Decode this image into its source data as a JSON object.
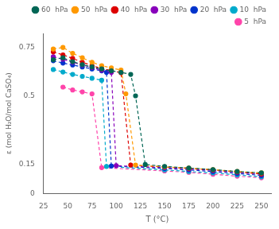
{
  "chart_data": {
    "type": "line",
    "xlabel": "T (°C)",
    "ylabel": "ε (mol H₂O/mol CaSO₄)",
    "xlim": [
      25,
      260
    ],
    "ylim": [
      0,
      0.82
    ],
    "xticks": [
      25,
      50,
      75,
      100,
      125,
      150,
      175,
      200,
      225,
      250
    ],
    "yticks": [
      0,
      0.15,
      0.5,
      0.75
    ],
    "grid": false,
    "legend": "upper right",
    "marker": "o",
    "line_style": "dashed",
    "series": [
      {
        "name": "60  hPa",
        "color": "#006655",
        "x": [
          35,
          45,
          55,
          65,
          75,
          85,
          95,
          105,
          115,
          120,
          130,
          150,
          175,
          200,
          225,
          250
        ],
        "values": [
          0.685,
          0.695,
          0.675,
          0.66,
          0.648,
          0.638,
          0.628,
          0.62,
          0.61,
          0.5,
          0.148,
          0.138,
          0.13,
          0.122,
          0.112,
          0.105
        ]
      },
      {
        "name": "50  hPa",
        "color": "#ff9900",
        "x": [
          35,
          45,
          55,
          65,
          75,
          85,
          95,
          105,
          110,
          120,
          150,
          175,
          200,
          225,
          250
        ],
        "values": [
          0.74,
          0.748,
          0.718,
          0.695,
          0.672,
          0.655,
          0.643,
          0.632,
          0.51,
          0.145,
          0.136,
          0.13,
          0.122,
          0.112,
          0.105
        ]
      },
      {
        "name": "40  hPa",
        "color": "#dd0000",
        "x": [
          35,
          45,
          55,
          65,
          75,
          85,
          95,
          105,
          115,
          150,
          175,
          200,
          225,
          250
        ],
        "values": [
          0.725,
          0.71,
          0.692,
          0.672,
          0.655,
          0.64,
          0.63,
          0.618,
          0.145,
          0.135,
          0.128,
          0.12,
          0.11,
          0.1
        ]
      },
      {
        "name": "30  hPa",
        "color": "#8800bb",
        "x": [
          35,
          45,
          55,
          65,
          75,
          85,
          95,
          100,
          150,
          175,
          200,
          225,
          250
        ],
        "values": [
          0.7,
          0.688,
          0.672,
          0.658,
          0.645,
          0.632,
          0.62,
          0.142,
          0.132,
          0.125,
          0.118,
          0.108,
          0.098
        ]
      },
      {
        "name": "20  hPa",
        "color": "#0033cc",
        "x": [
          35,
          45,
          55,
          65,
          75,
          85,
          90,
          95,
          150,
          175,
          200,
          225,
          250
        ],
        "values": [
          0.68,
          0.668,
          0.658,
          0.648,
          0.638,
          0.628,
          0.62,
          0.14,
          0.128,
          0.12,
          0.112,
          0.102,
          0.092
        ]
      },
      {
        "name": "10  hPa",
        "color": "#00aacc",
        "x": [
          35,
          45,
          55,
          65,
          75,
          85,
          90,
          150,
          175,
          200,
          225,
          250
        ],
        "values": [
          0.635,
          0.622,
          0.61,
          0.6,
          0.59,
          0.58,
          0.138,
          0.12,
          0.112,
          0.105,
          0.095,
          0.085
        ]
      },
      {
        "name": "5  hPa",
        "color": "#ff44aa",
        "x": [
          45,
          55,
          65,
          75,
          85,
          150,
          175,
          200,
          225,
          250
        ],
        "values": [
          0.545,
          0.53,
          0.52,
          0.51,
          0.132,
          0.115,
          0.108,
          0.098,
          0.088,
          0.08
        ]
      }
    ]
  }
}
